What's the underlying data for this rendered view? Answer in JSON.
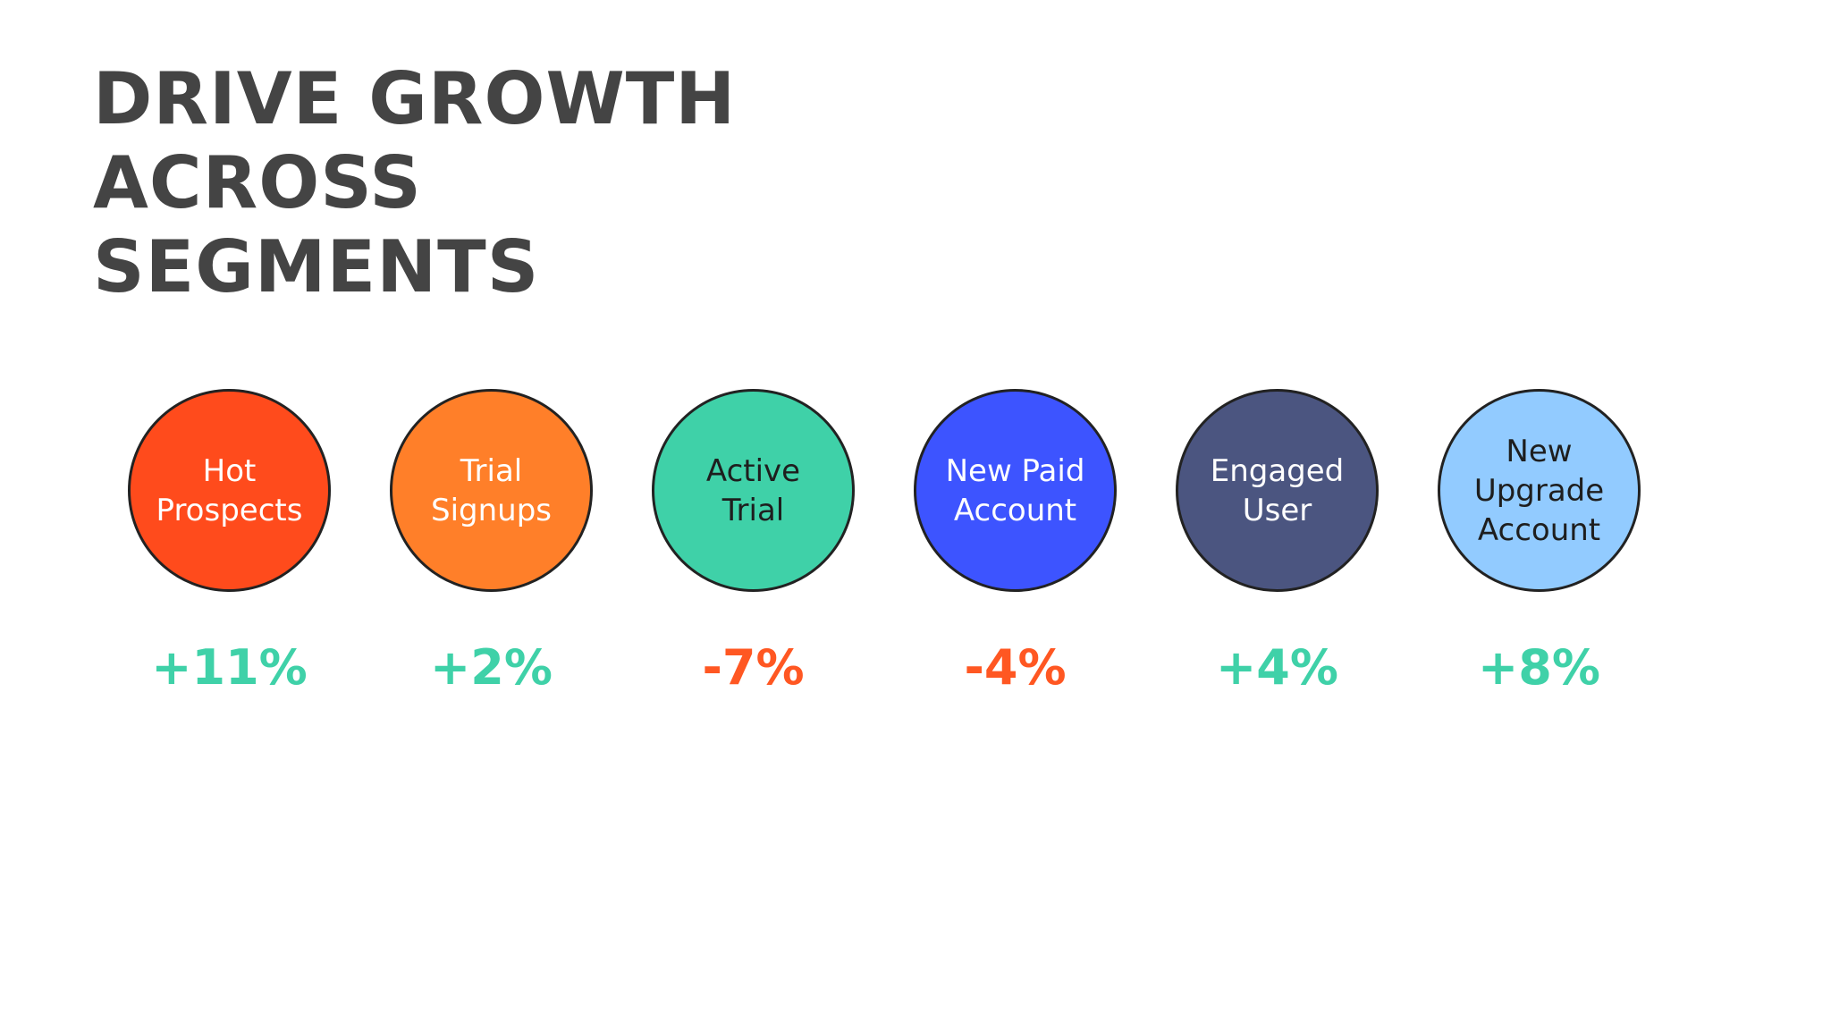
{
  "title": "DRIVE GROWTH ACROSS\nSEGMENTS",
  "colors": {
    "title": "#444444",
    "positive": "#3fd1a8",
    "negative": "#ff5722",
    "outline": "#222222",
    "background": "#ffffff"
  },
  "segments": [
    {
      "label": "Hot\nProspects",
      "change": "+11%",
      "direction": "positive",
      "fill": "#ff4b1c",
      "text_color": "#ffffff"
    },
    {
      "label": "Trial\nSignups",
      "change": "+2%",
      "direction": "positive",
      "fill": "#ff7f29",
      "text_color": "#ffffff"
    },
    {
      "label": "Active\nTrial",
      "change": "-7%",
      "direction": "negative",
      "fill": "#3fd1a8",
      "text_color": "#1e1e1e"
    },
    {
      "label": "New Paid\nAccount",
      "change": "-4%",
      "direction": "negative",
      "fill": "#3d54ff",
      "text_color": "#ffffff"
    },
    {
      "label": "Engaged\nUser",
      "change": "+4%",
      "direction": "positive",
      "fill": "#4b5580",
      "text_color": "#ffffff"
    },
    {
      "label": "New\nUpgrade\nAccount",
      "change": "+8%",
      "direction": "positive",
      "fill": "#92cbff",
      "text_color": "#1e1e1e"
    }
  ]
}
